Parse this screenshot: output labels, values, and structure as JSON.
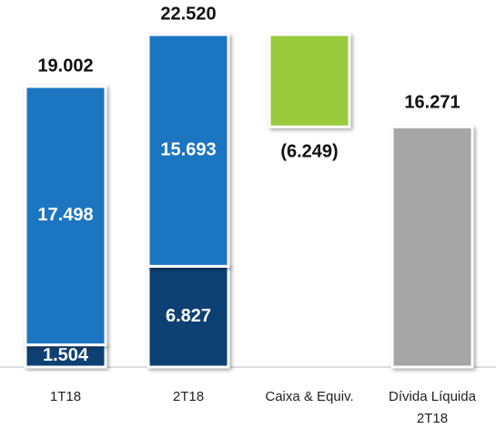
{
  "chart_data": {
    "type": "waterfall",
    "categories": [
      "1T18",
      "2T18",
      "Caixa & Equiv.",
      "Dívida Líquida 2T18"
    ],
    "series": [
      {
        "color": "#0b3f73",
        "values": [
          1504,
          6827,
          null,
          null
        ],
        "value_labels": [
          "1.504",
          "6.827",
          null,
          null
        ]
      },
      {
        "color": "#1f74c0",
        "values": [
          17498,
          15693,
          null,
          null
        ],
        "value_labels": [
          "17.498",
          "15.693",
          null,
          null
        ]
      },
      {
        "color": "#9acb3c",
        "values": [
          null,
          null,
          -6249,
          null
        ],
        "value_labels": [
          null,
          null,
          "(6.249)",
          null
        ]
      },
      {
        "color": "#a6a6a6",
        "values": [
          null,
          null,
          null,
          16271
        ],
        "value_labels": [
          null,
          null,
          null,
          "16.271"
        ]
      }
    ],
    "totals": [
      19002,
      22520,
      null,
      null
    ],
    "total_labels": [
      "19.002",
      "22.520",
      null,
      null
    ]
  }
}
